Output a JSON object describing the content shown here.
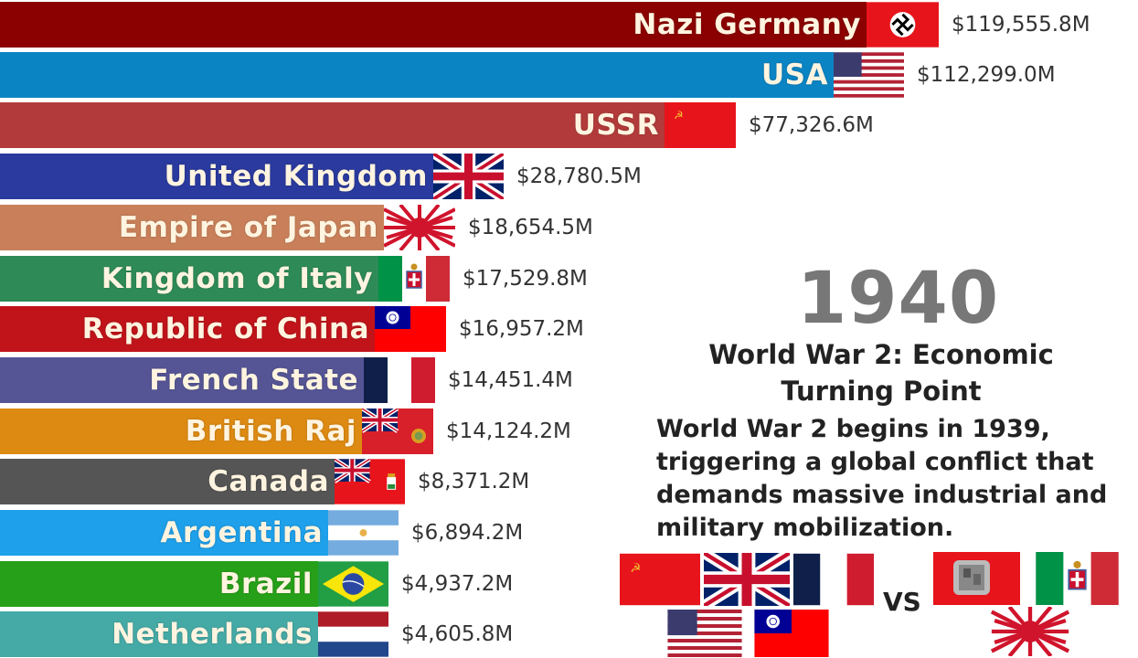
{
  "chart_data": {
    "type": "bar",
    "orientation": "horizontal",
    "title": "World War 2: Economic Turning Point",
    "year": "1940",
    "unit": "$M",
    "categories": [
      "Nazi Germany",
      "USA",
      "USSR",
      "United Kingdom",
      "Empire of Japan",
      "Kingdom of Italy",
      "Republic of China",
      "French State",
      "British Raj",
      "Canada",
      "Argentina",
      "Brazil",
      "Netherlands"
    ],
    "values": [
      119555.8,
      112299.0,
      77326.6,
      28780.5,
      18654.5,
      17529.8,
      16957.2,
      14451.4,
      14124.2,
      8371.2,
      6894.2,
      4937.2,
      4605.8
    ],
    "grid": false,
    "legend": "none"
  },
  "bars": [
    {
      "name": "Nazi Germany",
      "value_label": "$119,555.8M",
      "color": "#8b0000",
      "bar_end": 948,
      "flag": "nazi"
    },
    {
      "name": "USA",
      "value_label": "$112,299.0M",
      "color": "#0b84c4",
      "bar_end": 912,
      "flag": "usa"
    },
    {
      "name": "USSR",
      "value_label": "$77,326.6M",
      "color": "#b23a3a",
      "bar_end": 727,
      "flag": "ussr"
    },
    {
      "name": "United Kingdom",
      "value_label": "$28,780.5M",
      "color": "#2a3a9e",
      "bar_end": 474,
      "flag": "uk"
    },
    {
      "name": "Empire of Japan",
      "value_label": "$18,654.5M",
      "color": "#c9805a",
      "bar_end": 420,
      "flag": "japan"
    },
    {
      "name": "Kingdom of Italy",
      "value_label": "$17,529.8M",
      "color": "#2e8b57",
      "bar_end": 414,
      "flag": "italy"
    },
    {
      "name": "Republic of China",
      "value_label": "$16,957.2M",
      "color": "#c0141a",
      "bar_end": 410,
      "flag": "roc"
    },
    {
      "name": "French State",
      "value_label": "$14,451.4M",
      "color": "#555596",
      "bar_end": 398,
      "flag": "france"
    },
    {
      "name": "British Raj",
      "value_label": "$14,124.2M",
      "color": "#dd8a12",
      "bar_end": 396,
      "flag": "raj"
    },
    {
      "name": "Canada",
      "value_label": "$8,371.2M",
      "color": "#555555",
      "bar_end": 366,
      "flag": "canada"
    },
    {
      "name": "Argentina",
      "value_label": "$6,894.2M",
      "color": "#1ea0ea",
      "bar_end": 359,
      "flag": "argentina"
    },
    {
      "name": "Brazil",
      "value_label": "$4,937.2M",
      "color": "#27a019",
      "bar_end": 348,
      "flag": "brazil"
    },
    {
      "name": "Netherlands",
      "value_label": "$4,605.8M",
      "color": "#45aaa6",
      "bar_end": 348,
      "flag": "netherlands"
    }
  ],
  "panel": {
    "year": "1940",
    "title": "World War 2: Economic Turning Point",
    "description": "World War 2 begins in 1939, triggering a global conflict that demands massive industrial and military mobilization.",
    "vs_label": "VS",
    "allies": [
      "ussr",
      "uk",
      "france",
      "usa",
      "roc"
    ],
    "axis": [
      "nazi-emblem",
      "italy",
      "japan"
    ]
  }
}
